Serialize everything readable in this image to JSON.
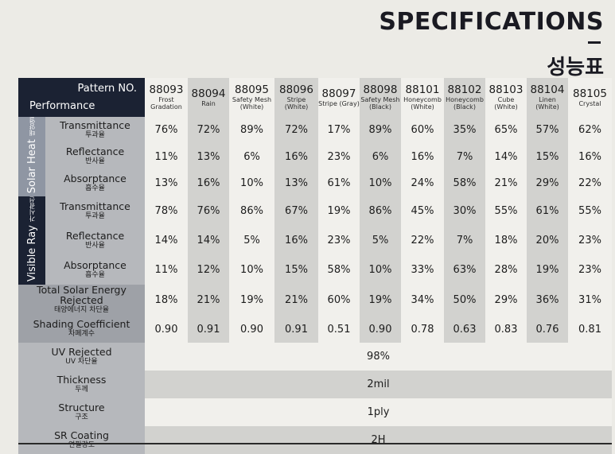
{
  "title": {
    "en": "SPECIFICATIONS",
    "ko": "성능표"
  },
  "table": {
    "corner_pattern": "Pattern NO.",
    "corner_performance": "Performance",
    "patterns": [
      {
        "code": "88093",
        "desc": "Frost Gradation"
      },
      {
        "code": "88094",
        "desc": "Rain"
      },
      {
        "code": "88095",
        "desc": "Safety Mesh (White)"
      },
      {
        "code": "88096",
        "desc": "Stripe (White)"
      },
      {
        "code": "88097",
        "desc": "Stripe (Gray)"
      },
      {
        "code": "88098",
        "desc": "Safety Mesh (Black)"
      },
      {
        "code": "88101",
        "desc": "Honeycomb (White)"
      },
      {
        "code": "88102",
        "desc": "Honeycomb (Black)"
      },
      {
        "code": "88103",
        "desc": "Cube (White)"
      },
      {
        "code": "88104",
        "desc": "Linen (White)"
      },
      {
        "code": "88105",
        "desc": "Crystal"
      }
    ],
    "groups": {
      "solar": {
        "en": "Solar Heat",
        "ko": "태양열"
      },
      "visible": {
        "en": "Visible Ray",
        "ko": "가시광선"
      }
    },
    "rows": [
      {
        "en": "Transmittance",
        "ko": "투과율",
        "values": [
          "76%",
          "72%",
          "89%",
          "72%",
          "17%",
          "89%",
          "60%",
          "35%",
          "65%",
          "57%",
          "62%"
        ]
      },
      {
        "en": "Reflectance",
        "ko": "반사율",
        "values": [
          "11%",
          "13%",
          "6%",
          "16%",
          "23%",
          "6%",
          "16%",
          "7%",
          "14%",
          "15%",
          "16%"
        ]
      },
      {
        "en": "Absorptance",
        "ko": "흡수율",
        "values": [
          "13%",
          "16%",
          "10%",
          "13%",
          "61%",
          "10%",
          "24%",
          "58%",
          "21%",
          "29%",
          "22%"
        ]
      },
      {
        "en": "Transmittance",
        "ko": "투과율",
        "values": [
          "78%",
          "76%",
          "86%",
          "67%",
          "19%",
          "86%",
          "45%",
          "30%",
          "55%",
          "61%",
          "55%"
        ]
      },
      {
        "en": "Reflectance",
        "ko": "반사율",
        "values": [
          "14%",
          "14%",
          "5%",
          "16%",
          "23%",
          "5%",
          "22%",
          "7%",
          "18%",
          "20%",
          "23%"
        ]
      },
      {
        "en": "Absorptance",
        "ko": "흡수율",
        "values": [
          "11%",
          "12%",
          "10%",
          "15%",
          "58%",
          "10%",
          "33%",
          "63%",
          "28%",
          "19%",
          "23%"
        ]
      },
      {
        "en": "Total Solar Energy Rejected",
        "ko": "태양에너지 차단율",
        "values": [
          "18%",
          "21%",
          "19%",
          "21%",
          "60%",
          "19%",
          "34%",
          "50%",
          "29%",
          "36%",
          "31%"
        ]
      },
      {
        "en": "Shading Coefficient",
        "ko": "차폐계수",
        "values": [
          "0.90",
          "0.91",
          "0.90",
          "0.91",
          "0.51",
          "0.90",
          "0.78",
          "0.63",
          "0.83",
          "0.76",
          "0.81"
        ]
      }
    ],
    "full_rows": [
      {
        "en": "UV Rejected",
        "ko": "UV 차단율",
        "value": "98%"
      },
      {
        "en": "Thickness",
        "ko": "두께",
        "value": "2mil"
      },
      {
        "en": "Structure",
        "ko": "구조",
        "value": "1ply"
      },
      {
        "en": "SR Coating",
        "ko": "연필강도",
        "value": "2H"
      }
    ]
  }
}
